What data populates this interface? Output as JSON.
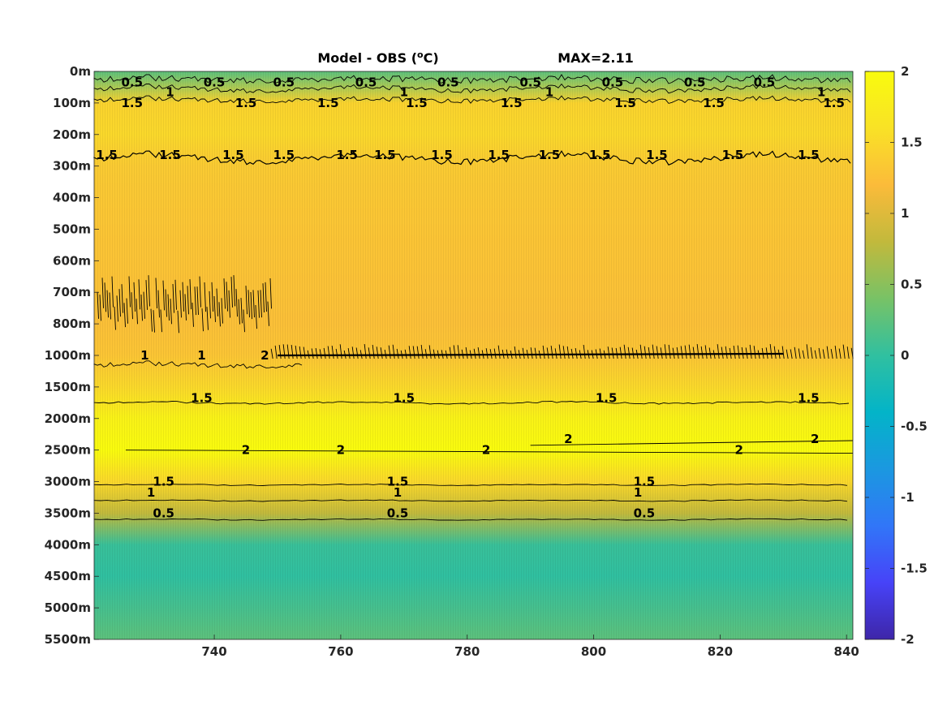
{
  "chart_data": {
    "type": "heatmap",
    "title": "Model - OBS (",
    "title_unit_sup": "o",
    "title_unit_end": "C)",
    "annotation": "MAX=2.11",
    "x_range": [
      721,
      841
    ],
    "x_ticks": [
      740,
      760,
      780,
      800,
      820,
      840
    ],
    "x_tick_labels": [
      "740",
      "760",
      "780",
      "800",
      "820",
      "840"
    ],
    "y_tick_labels": [
      "0m",
      "100m",
      "200m",
      "300m",
      "400m",
      "500m",
      "600m",
      "700m",
      "800m",
      "1000m",
      "1500m",
      "2000m",
      "2500m",
      "3000m",
      "3500m",
      "4000m",
      "4500m",
      "5000m",
      "5500m"
    ],
    "y_reversed": true,
    "colorbar": {
      "range": [
        -2,
        2
      ],
      "ticks": [
        2,
        1.5,
        1,
        0.5,
        0,
        -0.5,
        -1,
        -1.5,
        -2
      ],
      "tick_labels": [
        "2",
        "1.5",
        "1",
        "0.5",
        "0",
        "-0.5",
        "-1",
        "-1.5",
        "-2"
      ],
      "colormap": "parula",
      "colors": [
        "#3e26a8",
        "#4743f8",
        "#3176f8",
        "#1b98e0",
        "#03b4c8",
        "#30c0a0",
        "#78c266",
        "#c2b93c",
        "#fbbb3a",
        "#f9e226",
        "#f9fb0e"
      ]
    },
    "depth_profile": [
      {
        "depth": "0m",
        "value": 0.25
      },
      {
        "depth": "100m",
        "value": 1.45
      },
      {
        "depth": "200m",
        "value": 1.5
      },
      {
        "depth": "300m",
        "value": 1.35
      },
      {
        "depth": "500m",
        "value": 1.3
      },
      {
        "depth": "800m",
        "value": 1.25
      },
      {
        "depth": "1000m",
        "value": 1.3
      },
      {
        "depth": "1500m",
        "value": 1.5
      },
      {
        "depth": "2000m",
        "value": 1.85
      },
      {
        "depth": "2500m",
        "value": 2.05
      },
      {
        "depth": "3000m",
        "value": 1.5
      },
      {
        "depth": "3500m",
        "value": 0.8
      },
      {
        "depth": "4000m",
        "value": 0.05
      },
      {
        "depth": "4500m",
        "value": 0.0
      },
      {
        "depth": "5500m",
        "value": 0.25
      }
    ],
    "contour_labels": [
      {
        "text": "0.5",
        "x": 727,
        "depth": "0m+"
      },
      {
        "text": "0.5",
        "x": 740,
        "depth": "0m+"
      },
      {
        "text": "0.5",
        "x": 751,
        "depth": "0m+"
      },
      {
        "text": "0.5",
        "x": 764,
        "depth": "0m+"
      },
      {
        "text": "0.5",
        "x": 777,
        "depth": "0m+"
      },
      {
        "text": "0.5",
        "x": 790,
        "depth": "0m+"
      },
      {
        "text": "0.5",
        "x": 803,
        "depth": "0m+"
      },
      {
        "text": "0.5",
        "x": 816,
        "depth": "0m+"
      },
      {
        "text": "0.5",
        "x": 827,
        "depth": "0m+"
      },
      {
        "text": "1",
        "x": 733,
        "depth": "100m-"
      },
      {
        "text": "1",
        "x": 770,
        "depth": "100m-"
      },
      {
        "text": "1",
        "x": 793,
        "depth": "100m-"
      },
      {
        "text": "1",
        "x": 836,
        "depth": "100m-"
      },
      {
        "text": "1.5",
        "x": 727,
        "depth": "100m"
      },
      {
        "text": "1.5",
        "x": 745,
        "depth": "100m"
      },
      {
        "text": "1.5",
        "x": 758,
        "depth": "100m"
      },
      {
        "text": "1.5",
        "x": 772,
        "depth": "100m"
      },
      {
        "text": "1.5",
        "x": 787,
        "depth": "100m"
      },
      {
        "text": "1.5",
        "x": 805,
        "depth": "100m"
      },
      {
        "text": "1.5",
        "x": 819,
        "depth": "100m"
      },
      {
        "text": "1.5",
        "x": 838,
        "depth": "100m"
      },
      {
        "text": "1.5",
        "x": 723,
        "depth": "300m-"
      },
      {
        "text": "1.5",
        "x": 733,
        "depth": "300m-"
      },
      {
        "text": "1.5",
        "x": 743,
        "depth": "300m-"
      },
      {
        "text": "1.5",
        "x": 751,
        "depth": "300m-"
      },
      {
        "text": "1.5",
        "x": 761,
        "depth": "300m-"
      },
      {
        "text": "1.5",
        "x": 767,
        "depth": "300m-"
      },
      {
        "text": "1.5",
        "x": 776,
        "depth": "300m-"
      },
      {
        "text": "1.5",
        "x": 785,
        "depth": "300m-"
      },
      {
        "text": "1.5",
        "x": 793,
        "depth": "300m-"
      },
      {
        "text": "1.5",
        "x": 801,
        "depth": "300m-"
      },
      {
        "text": "1.5",
        "x": 810,
        "depth": "300m-"
      },
      {
        "text": "1.5",
        "x": 822,
        "depth": "300m-"
      },
      {
        "text": "1.5",
        "x": 834,
        "depth": "300m-"
      },
      {
        "text": "1",
        "x": 729,
        "depth": "1000m"
      },
      {
        "text": "1",
        "x": 738,
        "depth": "1000m"
      },
      {
        "text": "2",
        "x": 748,
        "depth": "1000m"
      },
      {
        "text": "1.5",
        "x": 738,
        "depth": "1500m+"
      },
      {
        "text": "1.5",
        "x": 770,
        "depth": "1500m+"
      },
      {
        "text": "1.5",
        "x": 802,
        "depth": "1500m+"
      },
      {
        "text": "1.5",
        "x": 834,
        "depth": "1500m+"
      },
      {
        "text": "2",
        "x": 745,
        "depth": "2500m"
      },
      {
        "text": "2",
        "x": 760,
        "depth": "2500m"
      },
      {
        "text": "2",
        "x": 783,
        "depth": "2500m"
      },
      {
        "text": "2",
        "x": 796,
        "depth": "2500m-"
      },
      {
        "text": "2",
        "x": 823,
        "depth": "2500m"
      },
      {
        "text": "2",
        "x": 835,
        "depth": "2500m-"
      },
      {
        "text": "1.5",
        "x": 732,
        "depth": "3000m"
      },
      {
        "text": "1.5",
        "x": 769,
        "depth": "3000m"
      },
      {
        "text": "1.5",
        "x": 808,
        "depth": "3000m"
      },
      {
        "text": "1",
        "x": 730,
        "depth": "3000m+"
      },
      {
        "text": "1",
        "x": 769,
        "depth": "3000m+"
      },
      {
        "text": "1",
        "x": 807,
        "depth": "3000m+"
      },
      {
        "text": "0.5",
        "x": 732,
        "depth": "3500m"
      },
      {
        "text": "0.5",
        "x": 769,
        "depth": "3500m"
      },
      {
        "text": "0.5",
        "x": 808,
        "depth": "3500m"
      }
    ]
  }
}
